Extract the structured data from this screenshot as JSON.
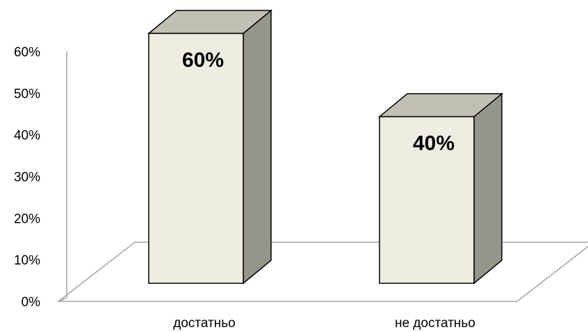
{
  "chart_data": {
    "type": "bar",
    "title": "",
    "xlabel": "",
    "ylabel": "",
    "categories": [
      "достатньо",
      "не достатньо"
    ],
    "values": [
      60,
      40
    ],
    "data_labels": [
      "60%",
      "40%"
    ],
    "ylim": [
      0,
      60
    ],
    "yticks": [
      0,
      10,
      20,
      30,
      40,
      50,
      60
    ],
    "ytick_labels": [
      "0%",
      "10%",
      "20%",
      "30%",
      "40%",
      "50%",
      "60%"
    ],
    "grid": false,
    "legend": "none",
    "style": "3d-column",
    "colors": {
      "front": "#efece2",
      "top": "#c3bfb4",
      "side": "#95958c",
      "edge": "#000000",
      "axis": "#a6a6a6"
    }
  }
}
